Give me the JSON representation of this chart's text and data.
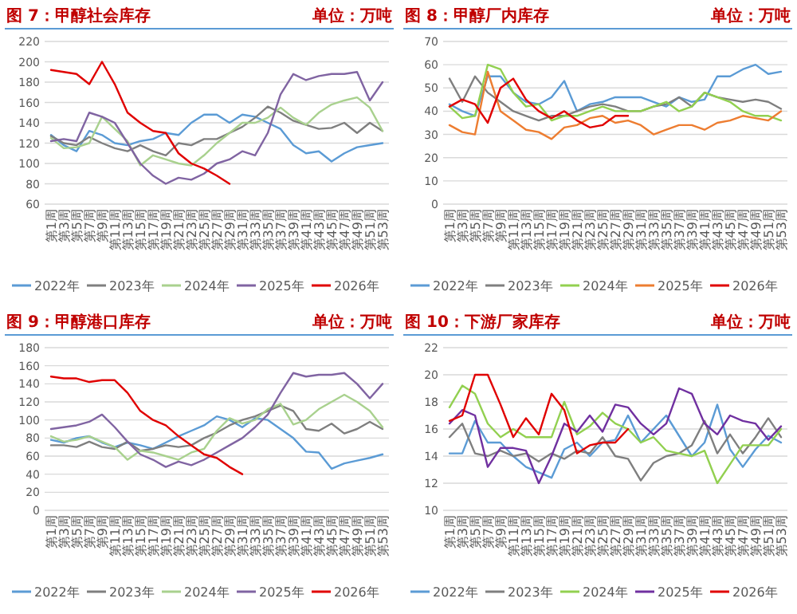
{
  "chart_data": [
    {
      "type": "line",
      "title": "图 7：甲醇社会库存",
      "subtitle": "单位：万吨",
      "categories": [
        "第1周",
        "第3周",
        "第5周",
        "第7周",
        "第9周",
        "第11周",
        "第13周",
        "第15周",
        "第17周",
        "第19周",
        "第21周",
        "第23周",
        "第25周",
        "第27周",
        "第29周",
        "第31周",
        "第33周",
        "第35周",
        "第37周",
        "第39周",
        "第41周",
        "第43周",
        "第45周",
        "第47周",
        "第49周",
        "第51周",
        "第53周"
      ],
      "ylim": [
        60,
        220
      ],
      "yticks": [
        60,
        80,
        100,
        120,
        140,
        160,
        180,
        200,
        220
      ],
      "grid": "y",
      "legend": "bottom",
      "series": [
        {
          "name": "2022年",
          "color": "#5b9bd5",
          "values": [
            128,
            118,
            112,
            132,
            128,
            120,
            118,
            122,
            124,
            130,
            128,
            140,
            148,
            148,
            140,
            148,
            146,
            140,
            134,
            118,
            110,
            112,
            102,
            110,
            116,
            118,
            120
          ]
        },
        {
          "name": "2023年",
          "color": "#7f7f7f",
          "values": [
            127,
            120,
            118,
            126,
            120,
            115,
            112,
            118,
            112,
            108,
            120,
            118,
            124,
            124,
            130,
            136,
            145,
            156,
            150,
            142,
            138,
            134,
            135,
            140,
            130,
            140,
            132
          ]
        },
        {
          "name": "2024年",
          "color": "#a9d18e",
          "values": [
            125,
            115,
            116,
            120,
            146,
            134,
            122,
            98,
            108,
            104,
            100,
            98,
            108,
            120,
            130,
            140,
            140,
            145,
            155,
            145,
            138,
            150,
            158,
            162,
            165,
            155,
            132
          ]
        },
        {
          "name": "2025年",
          "color": "#8064a2",
          "values": [
            122,
            124,
            122,
            150,
            146,
            140,
            120,
            100,
            88,
            80,
            86,
            84,
            90,
            100,
            104,
            112,
            108,
            130,
            168,
            188,
            182,
            186,
            188,
            188,
            190,
            162,
            180
          ]
        },
        {
          "name": "2026年",
          "color": "#e00000",
          "values": [
            192,
            190,
            188,
            178,
            200,
            178,
            150,
            140,
            132,
            130,
            110,
            100,
            95,
            88,
            80,
            null,
            null,
            null,
            null,
            null,
            null,
            null,
            null,
            null,
            null,
            null,
            null
          ]
        }
      ]
    },
    {
      "type": "line",
      "title": "图 8：甲醇厂内库存",
      "subtitle": "单位：万吨",
      "categories": [
        "第1周",
        "第3周",
        "第5周",
        "第7周",
        "第9周",
        "第11周",
        "第13周",
        "第15周",
        "第17周",
        "第19周",
        "第21周",
        "第23周",
        "第25周",
        "第27周",
        "第29周",
        "第31周",
        "第33周",
        "第35周",
        "第37周",
        "第39周",
        "第41周",
        "第43周",
        "第45周",
        "第47周",
        "第49周",
        "第51周",
        "第53周"
      ],
      "ylim": [
        0,
        70
      ],
      "yticks": [
        0,
        10,
        20,
        30,
        40,
        50,
        60,
        70
      ],
      "grid": "y",
      "legend": "bottom",
      "series": [
        {
          "name": "2022年",
          "color": "#5b9bd5",
          "values": [
            43,
            40,
            38,
            55,
            55,
            48,
            44,
            43,
            46,
            53,
            40,
            43,
            44,
            46,
            46,
            46,
            44,
            42,
            46,
            44,
            45,
            55,
            55,
            58,
            60,
            56,
            57
          ]
        },
        {
          "name": "2023年",
          "color": "#7f7f7f",
          "values": [
            54,
            44,
            55,
            48,
            44,
            40,
            38,
            36,
            38,
            38,
            40,
            42,
            43,
            42,
            40,
            40,
            42,
            43,
            46,
            42,
            48,
            46,
            45,
            44,
            45,
            44,
            41
          ]
        },
        {
          "name": "2024年",
          "color": "#92d050",
          "values": [
            42,
            37,
            38,
            60,
            58,
            48,
            42,
            43,
            36,
            38,
            38,
            40,
            42,
            40,
            40,
            40,
            42,
            44,
            40,
            42,
            48,
            46,
            44,
            40,
            38,
            38,
            36
          ]
        },
        {
          "name": "2025年",
          "color": "#ed7d31",
          "values": [
            34,
            31,
            30,
            57,
            40,
            36,
            32,
            31,
            28,
            33,
            34,
            37,
            38,
            35,
            36,
            34,
            30,
            32,
            34,
            34,
            32,
            35,
            36,
            38,
            37,
            36,
            40
          ]
        },
        {
          "name": "2026年",
          "color": "#e00000",
          "values": [
            42,
            45,
            43,
            35,
            50,
            54,
            45,
            40,
            37,
            40,
            36,
            33,
            34,
            38,
            38,
            null,
            null,
            null,
            null,
            null,
            null,
            null,
            null,
            null,
            null,
            null,
            null
          ]
        }
      ]
    },
    {
      "type": "line",
      "title": "图 9：甲醇港口库存",
      "subtitle": "单位：万吨",
      "categories": [
        "第1周",
        "第3周",
        "第5周",
        "第7周",
        "第9周",
        "第11周",
        "第13周",
        "第15周",
        "第17周",
        "第19周",
        "第21周",
        "第23周",
        "第25周",
        "第27周",
        "第29周",
        "第31周",
        "第33周",
        "第35周",
        "第37周",
        "第39周",
        "第41周",
        "第43周",
        "第45周",
        "第47周",
        "第49周",
        "第51周",
        "第53周"
      ],
      "ylim": [
        0,
        180
      ],
      "yticks": [
        0,
        20,
        40,
        60,
        80,
        100,
        120,
        140,
        160,
        180
      ],
      "grid": "y",
      "legend": "bottom",
      "series": [
        {
          "name": "2022年",
          "color": "#5b9bd5",
          "values": [
            78,
            75,
            80,
            82,
            75,
            70,
            75,
            72,
            68,
            75,
            82,
            88,
            94,
            104,
            100,
            92,
            102,
            100,
            90,
            80,
            65,
            64,
            46,
            52,
            55,
            58,
            62
          ]
        },
        {
          "name": "2023年",
          "color": "#7f7f7f",
          "values": [
            72,
            72,
            70,
            76,
            70,
            68,
            76,
            66,
            68,
            72,
            70,
            72,
            80,
            86,
            94,
            100,
            104,
            110,
            116,
            110,
            90,
            88,
            96,
            85,
            90,
            98,
            90
          ]
        },
        {
          "name": "2024年",
          "color": "#a9d18e",
          "values": [
            82,
            76,
            78,
            82,
            76,
            70,
            56,
            66,
            64,
            60,
            56,
            64,
            68,
            88,
            102,
            96,
            100,
            112,
            118,
            95,
            100,
            112,
            120,
            128,
            120,
            110,
            92
          ]
        },
        {
          "name": "2025年",
          "color": "#8064a2",
          "values": [
            90,
            92,
            94,
            98,
            106,
            92,
            76,
            62,
            56,
            48,
            54,
            50,
            56,
            64,
            72,
            80,
            92,
            106,
            130,
            152,
            148,
            150,
            150,
            152,
            140,
            124,
            140
          ]
        },
        {
          "name": "2026年",
          "color": "#e00000",
          "values": [
            148,
            146,
            146,
            142,
            144,
            144,
            130,
            110,
            100,
            94,
            82,
            72,
            62,
            58,
            48,
            40,
            null,
            null,
            null,
            null,
            null,
            null,
            null,
            null,
            null,
            null,
            null
          ]
        }
      ]
    },
    {
      "type": "line",
      "title": "图 10：下游厂家库存",
      "subtitle": "单位：万吨",
      "categories": [
        "第1周",
        "第3周",
        "第5周",
        "第7周",
        "第9周",
        "第11周",
        "第13周",
        "第15周",
        "第17周",
        "第19周",
        "第21周",
        "第23周",
        "第25周",
        "第27周",
        "第29周",
        "第31周",
        "第33周",
        "第35周",
        "第37周",
        "第39周",
        "第41周",
        "第43周",
        "第45周",
        "第47周",
        "第49周",
        "第51周",
        "第53周"
      ],
      "ylim": [
        10,
        22
      ],
      "yticks": [
        10,
        12,
        14,
        16,
        18,
        20,
        22
      ],
      "grid": "y",
      "legend": "bottom",
      "series": [
        {
          "name": "2022年",
          "color": "#5b9bd5",
          "values": [
            14.2,
            14.2,
            16.6,
            15,
            15,
            14,
            13.2,
            12.8,
            12.4,
            14.5,
            15,
            14,
            15,
            15.2,
            17,
            15,
            16,
            17,
            15.5,
            14,
            15,
            17.8,
            14.5,
            13.2,
            14.5,
            15.5,
            15
          ]
        },
        {
          "name": "2023年",
          "color": "#7f7f7f",
          "values": [
            15.4,
            16.4,
            14.2,
            14,
            14.4,
            14,
            14.2,
            13.6,
            14.2,
            13.8,
            14.4,
            14.2,
            15.4,
            14,
            13.8,
            12.2,
            13.5,
            14,
            14.2,
            14.8,
            16.6,
            14.2,
            15.6,
            14.2,
            15.4,
            16.8,
            15.4
          ]
        },
        {
          "name": "2024年",
          "color": "#92d050",
          "values": [
            17.6,
            19.2,
            18.6,
            16.4,
            15.4,
            16,
            15.4,
            15.4,
            15.4,
            18,
            15.6,
            16.2,
            17.2,
            16.4,
            16,
            15,
            15.4,
            14.4,
            14.2,
            14,
            14.4,
            12,
            13.4,
            14.8,
            14.8,
            14.8,
            16
          ]
        },
        {
          "name": "2025年",
          "color": "#7030a0",
          "values": [
            16.4,
            17.4,
            17,
            13.2,
            14.6,
            14.6,
            14.4,
            12,
            14,
            16.4,
            15.8,
            17,
            15.8,
            17.8,
            17.6,
            16.4,
            15.6,
            16.4,
            19,
            18.6,
            16.4,
            15.6,
            17,
            16.6,
            16.4,
            15.2,
            16.2
          ]
        },
        {
          "name": "2026年",
          "color": "#e00000",
          "values": [
            16.6,
            17,
            20,
            20,
            17.8,
            15.4,
            16.8,
            15.6,
            18.6,
            17.4,
            14.2,
            14.8,
            15,
            15,
            16,
            null,
            null,
            null,
            null,
            null,
            null,
            null,
            null,
            null,
            null,
            null,
            null
          ]
        }
      ]
    }
  ]
}
